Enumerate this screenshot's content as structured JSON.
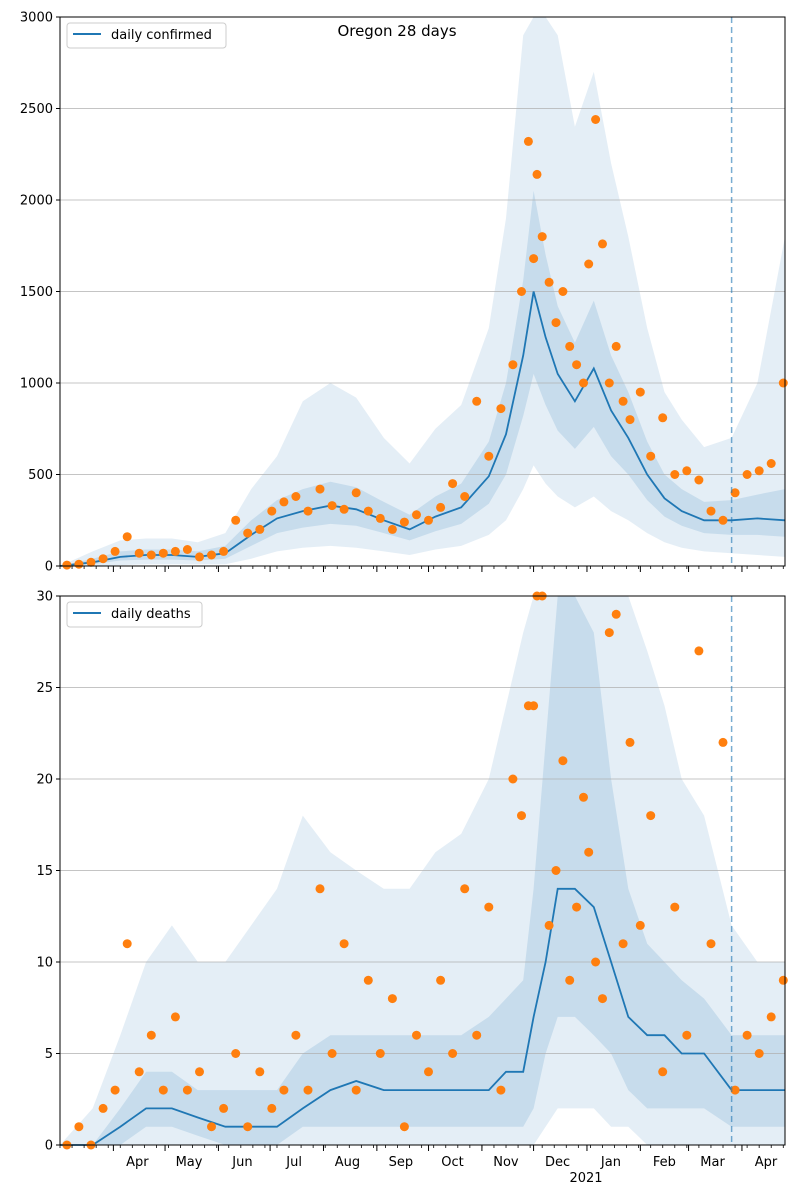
{
  "figure": {
    "title": "Oregon 28 days",
    "year_label": "2021",
    "x_month_labels": [
      "Apr",
      "May",
      "Jun",
      "Jul",
      "Aug",
      "Sep",
      "Oct",
      "Nov",
      "Dec",
      "Jan",
      "Feb",
      "Mar",
      "Apr"
    ]
  },
  "colors": {
    "line": "#1f77b4",
    "band": "#1f77b4",
    "points": "#ff7f0e",
    "grid": "#b0b0b0"
  },
  "chart_data": [
    {
      "type": "line",
      "panel": "top",
      "title": "Oregon 28 days",
      "legend": {
        "label": "daily confirmed",
        "position": "top-left"
      },
      "xlabel": "",
      "ylabel": "",
      "x_range": [
        "2020-03-01",
        "2021-04-26"
      ],
      "ylim": [
        0,
        3000
      ],
      "y_ticks": [
        0,
        500,
        1000,
        1500,
        2000,
        2500,
        3000
      ],
      "grid": "horizontal",
      "forecast_start": "2021-03-26",
      "series": [
        {
          "kind": "model line",
          "dates": [
            "2020-03-01",
            "2020-03-20",
            "2020-04-05",
            "2020-04-20",
            "2020-05-05",
            "2020-05-20",
            "2020-06-05",
            "2020-06-20",
            "2020-07-05",
            "2020-07-20",
            "2020-08-05",
            "2020-08-20",
            "2020-09-05",
            "2020-09-20",
            "2020-10-05",
            "2020-10-20",
            "2020-11-05",
            "2020-11-15",
            "2020-11-25",
            "2020-12-01",
            "2020-12-08",
            "2020-12-15",
            "2020-12-25",
            "2021-01-05",
            "2021-01-15",
            "2021-01-25",
            "2021-02-05",
            "2021-02-15",
            "2021-02-25",
            "2021-03-10",
            "2021-03-26",
            "2021-04-10",
            "2021-04-26"
          ],
          "values": [
            0,
            20,
            50,
            60,
            60,
            50,
            70,
            170,
            260,
            300,
            330,
            310,
            250,
            200,
            270,
            320,
            490,
            720,
            1150,
            1500,
            1250,
            1050,
            900,
            1080,
            850,
            700,
            500,
            370,
            300,
            250,
            250,
            260,
            250
          ]
        },
        {
          "kind": "interval band (inner, 50%)",
          "dates": [
            "2020-03-01",
            "2020-03-20",
            "2020-04-05",
            "2020-04-20",
            "2020-05-05",
            "2020-05-20",
            "2020-06-05",
            "2020-06-20",
            "2020-07-05",
            "2020-07-20",
            "2020-08-05",
            "2020-08-20",
            "2020-09-05",
            "2020-09-20",
            "2020-10-05",
            "2020-10-20",
            "2020-11-05",
            "2020-11-15",
            "2020-11-25",
            "2020-12-01",
            "2020-12-08",
            "2020-12-15",
            "2020-12-25",
            "2021-01-05",
            "2021-01-15",
            "2021-01-25",
            "2021-02-05",
            "2021-02-15",
            "2021-02-25",
            "2021-03-10",
            "2021-03-26",
            "2021-04-10",
            "2021-04-26"
          ],
          "lower": [
            0,
            10,
            30,
            35,
            35,
            30,
            40,
            110,
            180,
            210,
            230,
            220,
            180,
            140,
            190,
            230,
            340,
            500,
            820,
            1050,
            880,
            740,
            640,
            760,
            600,
            500,
            360,
            270,
            220,
            180,
            170,
            170,
            160
          ],
          "upper": [
            0,
            40,
            80,
            90,
            90,
            80,
            110,
            250,
            360,
            420,
            460,
            430,
            350,
            280,
            380,
            450,
            680,
            1000,
            1560,
            2050,
            1700,
            1420,
            1220,
            1450,
            1150,
            950,
            680,
            500,
            420,
            350,
            360,
            390,
            420
          ]
        },
        {
          "kind": "interval band (outer, 90%)",
          "dates": [
            "2020-03-01",
            "2020-03-20",
            "2020-04-05",
            "2020-04-20",
            "2020-05-05",
            "2020-05-20",
            "2020-06-05",
            "2020-06-20",
            "2020-07-05",
            "2020-07-20",
            "2020-08-05",
            "2020-08-20",
            "2020-09-05",
            "2020-09-20",
            "2020-10-05",
            "2020-10-20",
            "2020-11-05",
            "2020-11-15",
            "2020-11-25",
            "2020-12-01",
            "2020-12-08",
            "2020-12-15",
            "2020-12-25",
            "2021-01-05",
            "2021-01-15",
            "2021-01-25",
            "2021-02-05",
            "2021-02-15",
            "2021-02-25",
            "2021-03-10",
            "2021-03-26",
            "2021-04-10",
            "2021-04-26"
          ],
          "lower": [
            0,
            0,
            5,
            10,
            10,
            10,
            10,
            40,
            80,
            100,
            110,
            100,
            80,
            60,
            90,
            110,
            170,
            250,
            420,
            550,
            450,
            380,
            320,
            380,
            300,
            250,
            180,
            130,
            100,
            80,
            70,
            60,
            50
          ],
          "upper": [
            0,
            80,
            140,
            150,
            150,
            130,
            180,
            420,
            600,
            900,
            1000,
            920,
            700,
            560,
            750,
            880,
            1300,
            1900,
            2900,
            3100,
            3100,
            2900,
            2400,
            2700,
            2200,
            1800,
            1300,
            950,
            800,
            650,
            700,
            1000,
            1800
          ]
        },
        {
          "kind": "observed daily confirmed",
          "dates": [
            "2020-03-05",
            "2020-03-12",
            "2020-03-19",
            "2020-03-26",
            "2020-04-02",
            "2020-04-09",
            "2020-04-16",
            "2020-04-23",
            "2020-04-30",
            "2020-05-07",
            "2020-05-14",
            "2020-05-21",
            "2020-05-28",
            "2020-06-04",
            "2020-06-11",
            "2020-06-18",
            "2020-06-25",
            "2020-07-02",
            "2020-07-09",
            "2020-07-16",
            "2020-07-23",
            "2020-07-30",
            "2020-08-06",
            "2020-08-13",
            "2020-08-20",
            "2020-08-27",
            "2020-09-03",
            "2020-09-10",
            "2020-09-17",
            "2020-09-24",
            "2020-10-01",
            "2020-10-08",
            "2020-10-15",
            "2020-10-22",
            "2020-10-29",
            "2020-11-05",
            "2020-11-12",
            "2020-11-19",
            "2020-11-24",
            "2020-11-28",
            "2020-12-01",
            "2020-12-03",
            "2020-12-06",
            "2020-12-10",
            "2020-12-14",
            "2020-12-18",
            "2020-12-22",
            "2020-12-26",
            "2020-12-30",
            "2021-01-02",
            "2021-01-06",
            "2021-01-10",
            "2021-01-14",
            "2021-01-18",
            "2021-01-22",
            "2021-01-26",
            "2021-02-01",
            "2021-02-07",
            "2021-02-14",
            "2021-02-21",
            "2021-02-28",
            "2021-03-07",
            "2021-03-14",
            "2021-03-21",
            "2021-03-28",
            "2021-04-04",
            "2021-04-11",
            "2021-04-18",
            "2021-04-25"
          ],
          "values": [
            5,
            10,
            20,
            40,
            80,
            160,
            70,
            60,
            70,
            80,
            90,
            50,
            60,
            80,
            250,
            180,
            200,
            300,
            350,
            380,
            300,
            420,
            330,
            310,
            400,
            300,
            260,
            200,
            240,
            280,
            250,
            320,
            450,
            380,
            900,
            600,
            860,
            1100,
            1500,
            2320,
            1680,
            2140,
            1800,
            1550,
            1330,
            1500,
            1200,
            1100,
            1000,
            1650,
            2440,
            1760,
            1000,
            1200,
            900,
            800,
            950,
            600,
            810,
            500,
            520,
            470,
            300,
            250,
            400,
            500,
            520,
            560,
            1000
          ]
        }
      ]
    },
    {
      "type": "line",
      "panel": "bottom",
      "legend": {
        "label": "daily deaths",
        "position": "top-left"
      },
      "xlabel": "",
      "ylabel": "",
      "x_range": [
        "2020-03-01",
        "2021-04-26"
      ],
      "ylim": [
        0,
        30
      ],
      "y_ticks": [
        0,
        5,
        10,
        15,
        20,
        25,
        30
      ],
      "grid": "horizontal",
      "forecast_start": "2021-03-26",
      "series": [
        {
          "kind": "model line",
          "dates": [
            "2020-03-01",
            "2020-03-20",
            "2020-04-05",
            "2020-04-20",
            "2020-05-05",
            "2020-05-20",
            "2020-06-05",
            "2020-06-20",
            "2020-07-05",
            "2020-07-20",
            "2020-08-05",
            "2020-08-20",
            "2020-09-05",
            "2020-09-20",
            "2020-10-05",
            "2020-10-20",
            "2020-11-05",
            "2020-11-15",
            "2020-11-25",
            "2020-12-01",
            "2020-12-08",
            "2020-12-15",
            "2020-12-25",
            "2021-01-05",
            "2021-01-15",
            "2021-01-25",
            "2021-02-05",
            "2021-02-15",
            "2021-02-25",
            "2021-03-10",
            "2021-03-26",
            "2021-04-10",
            "2021-04-26"
          ],
          "values": [
            0,
            0,
            1,
            2,
            2,
            1.5,
            1,
            1,
            1,
            2,
            3,
            3.5,
            3,
            3,
            3,
            3,
            3,
            4,
            4,
            7,
            10,
            14,
            14,
            13,
            10,
            7,
            6,
            6,
            5,
            5,
            3,
            3,
            3
          ]
        },
        {
          "kind": "interval band (inner, 50%)",
          "dates": [
            "2020-03-01",
            "2020-03-20",
            "2020-04-05",
            "2020-04-20",
            "2020-05-05",
            "2020-05-20",
            "2020-06-05",
            "2020-06-20",
            "2020-07-05",
            "2020-07-20",
            "2020-08-05",
            "2020-08-20",
            "2020-09-05",
            "2020-09-20",
            "2020-10-05",
            "2020-10-20",
            "2020-11-05",
            "2020-11-15",
            "2020-11-25",
            "2020-12-01",
            "2020-12-08",
            "2020-12-15",
            "2020-12-25",
            "2021-01-05",
            "2021-01-15",
            "2021-01-25",
            "2021-02-05",
            "2021-02-15",
            "2021-02-25",
            "2021-03-10",
            "2021-03-26",
            "2021-04-10",
            "2021-04-26"
          ],
          "lower": [
            0,
            0,
            0,
            1,
            1,
            0.5,
            0,
            0,
            0,
            1,
            1,
            1,
            1,
            1,
            1,
            1,
            1,
            1,
            1,
            2,
            5,
            7,
            7,
            6,
            5,
            3,
            2,
            2,
            2,
            2,
            1,
            1,
            1
          ],
          "upper": [
            0,
            0,
            2,
            4,
            4,
            3,
            3,
            3,
            3,
            5,
            6,
            6,
            6,
            6,
            6,
            6,
            7,
            8,
            9,
            14,
            22,
            30,
            30,
            28,
            20,
            14,
            11,
            10,
            9,
            8,
            6,
            6,
            6
          ]
        },
        {
          "kind": "interval band (outer, 90%)",
          "dates": [
            "2020-03-01",
            "2020-03-20",
            "2020-04-05",
            "2020-04-20",
            "2020-05-05",
            "2020-05-20",
            "2020-06-05",
            "2020-06-20",
            "2020-07-05",
            "2020-07-20",
            "2020-08-05",
            "2020-08-20",
            "2020-09-05",
            "2020-09-20",
            "2020-10-05",
            "2020-10-20",
            "2020-11-05",
            "2020-11-15",
            "2020-11-25",
            "2020-12-01",
            "2020-12-08",
            "2020-12-15",
            "2020-12-25",
            "2021-01-05",
            "2021-01-15",
            "2021-01-25",
            "2021-02-05",
            "2021-02-15",
            "2021-02-25",
            "2021-03-10",
            "2021-03-26",
            "2021-04-10",
            "2021-04-26"
          ],
          "lower": [
            0,
            0,
            0,
            0,
            0,
            0,
            0,
            0,
            0,
            0,
            0,
            0,
            0,
            0,
            0,
            0,
            0,
            0,
            0,
            0,
            1,
            2,
            2,
            2,
            1,
            1,
            0,
            0,
            0,
            0,
            0,
            0,
            0
          ],
          "upper": [
            0,
            2,
            6,
            10,
            12,
            10,
            10,
            12,
            14,
            18,
            16,
            15,
            14,
            14,
            16,
            17,
            20,
            24,
            28,
            30,
            30,
            30,
            30,
            30,
            30,
            30,
            27,
            24,
            20,
            18,
            12,
            10,
            10
          ]
        },
        {
          "kind": "observed daily deaths",
          "dates": [
            "2020-03-05",
            "2020-03-12",
            "2020-03-19",
            "2020-03-26",
            "2020-04-02",
            "2020-04-09",
            "2020-04-16",
            "2020-04-23",
            "2020-04-30",
            "2020-05-07",
            "2020-05-14",
            "2020-05-21",
            "2020-05-28",
            "2020-06-04",
            "2020-06-11",
            "2020-06-18",
            "2020-06-25",
            "2020-07-02",
            "2020-07-09",
            "2020-07-16",
            "2020-07-23",
            "2020-07-30",
            "2020-08-06",
            "2020-08-13",
            "2020-08-20",
            "2020-08-27",
            "2020-09-03",
            "2020-09-10",
            "2020-09-17",
            "2020-09-24",
            "2020-10-01",
            "2020-10-08",
            "2020-10-15",
            "2020-10-22",
            "2020-10-29",
            "2020-11-05",
            "2020-11-12",
            "2020-11-19",
            "2020-11-24",
            "2020-11-28",
            "2020-12-01",
            "2020-12-03",
            "2020-12-06",
            "2020-12-10",
            "2020-12-14",
            "2020-12-18",
            "2020-12-22",
            "2020-12-26",
            "2020-12-30",
            "2021-01-02",
            "2021-01-06",
            "2021-01-10",
            "2021-01-14",
            "2021-01-18",
            "2021-01-22",
            "2021-01-26",
            "2021-02-01",
            "2021-02-07",
            "2021-02-14",
            "2021-02-21",
            "2021-02-28",
            "2021-03-07",
            "2021-03-14",
            "2021-03-21",
            "2021-03-28",
            "2021-04-04",
            "2021-04-11",
            "2021-04-18",
            "2021-04-25"
          ],
          "values": [
            0,
            1,
            0,
            2,
            3,
            11,
            4,
            6,
            3,
            7,
            3,
            4,
            1,
            2,
            5,
            1,
            4,
            2,
            3,
            6,
            3,
            14,
            5,
            11,
            3,
            9,
            5,
            8,
            1,
            6,
            4,
            9,
            5,
            14,
            6,
            13,
            3,
            20,
            18,
            24,
            24,
            30,
            30,
            12,
            15,
            21,
            9,
            13,
            19,
            16,
            10,
            8,
            28,
            29,
            11,
            22,
            12,
            18,
            4,
            13,
            6,
            27,
            11,
            22,
            3,
            6,
            5,
            7,
            9
          ]
        }
      ]
    }
  ]
}
